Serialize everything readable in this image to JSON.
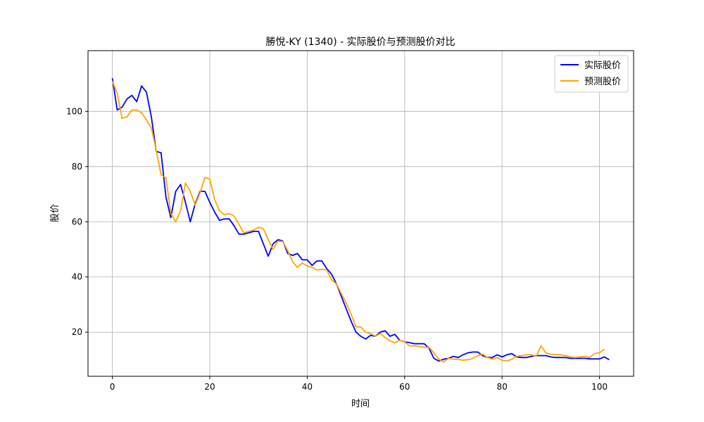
{
  "chart_data": {
    "type": "line",
    "title": "勝悅-KY (1340) - 实际股价与预测股价对比",
    "xlabel": "时间",
    "ylabel": "股价",
    "xlim": [
      -5,
      107
    ],
    "ylim": [
      4,
      122
    ],
    "xticks": [
      0,
      20,
      40,
      60,
      80,
      100
    ],
    "yticks": [
      20,
      40,
      60,
      80,
      100
    ],
    "grid": true,
    "legend_position": "top-right",
    "series": [
      {
        "name": "实际股价",
        "color": "#0000ff",
        "x": [
          0,
          1,
          2,
          3,
          4,
          5,
          6,
          7,
          8,
          9,
          10,
          11,
          12,
          13,
          14,
          15,
          16,
          17,
          18,
          19,
          20,
          21,
          22,
          23,
          24,
          25,
          26,
          27,
          28,
          29,
          30,
          31,
          32,
          33,
          34,
          35,
          36,
          37,
          38,
          39,
          40,
          41,
          42,
          43,
          44,
          45,
          46,
          47,
          48,
          49,
          50,
          51,
          52,
          53,
          54,
          55,
          56,
          57,
          58,
          59,
          60,
          61,
          62,
          63,
          64,
          65,
          66,
          67,
          68,
          69,
          70,
          71,
          72,
          73,
          74,
          75,
          76,
          77,
          78,
          79,
          80,
          81,
          82,
          83,
          84,
          85,
          86,
          87,
          88,
          89,
          90,
          91,
          92,
          93,
          94,
          95,
          96,
          97,
          98,
          99,
          100,
          101,
          102
        ],
        "y": [
          112.0,
          100.5,
          101.5,
          104.5,
          105.8,
          103.5,
          109.2,
          107.0,
          98.0,
          85.5,
          85.0,
          69.0,
          61.5,
          71.0,
          73.5,
          67.0,
          60.0,
          66.5,
          71.0,
          71.0,
          67.0,
          63.5,
          60.5,
          61.0,
          61.0,
          58.5,
          55.5,
          55.5,
          56.0,
          56.5,
          56.5,
          52.0,
          47.5,
          52.0,
          53.5,
          53.0,
          48.5,
          47.8,
          48.5,
          46.2,
          46.2,
          44.2,
          45.8,
          45.8,
          43.0,
          41.0,
          37.5,
          33.0,
          28.5,
          24.0,
          20.0,
          18.5,
          17.5,
          18.8,
          18.5,
          20.0,
          20.5,
          18.5,
          19.2,
          17.0,
          16.5,
          16.2,
          15.8,
          15.8,
          15.8,
          14.2,
          10.5,
          9.5,
          10.2,
          10.5,
          11.2,
          10.8,
          11.8,
          12.5,
          12.8,
          12.8,
          11.5,
          10.8,
          10.8,
          11.8,
          11.0,
          11.8,
          12.2,
          11.0,
          10.8,
          10.8,
          11.2,
          11.5,
          11.5,
          11.5,
          11.0,
          10.8,
          10.8,
          10.8,
          10.5,
          10.5,
          10.5,
          10.5,
          10.3,
          10.3,
          10.3,
          11.0,
          10.0
        ]
      },
      {
        "name": "预测股价",
        "color": "#ffa500",
        "x": [
          0,
          1,
          2,
          3,
          4,
          5,
          6,
          7,
          8,
          9,
          10,
          11,
          12,
          13,
          14,
          15,
          16,
          17,
          18,
          19,
          20,
          21,
          22,
          23,
          24,
          25,
          26,
          27,
          28,
          29,
          30,
          31,
          32,
          33,
          34,
          35,
          36,
          37,
          38,
          39,
          40,
          41,
          42,
          43,
          44,
          45,
          46,
          47,
          48,
          49,
          50,
          51,
          52,
          53,
          54,
          55,
          56,
          57,
          58,
          59,
          60,
          61,
          62,
          63,
          64,
          65,
          66,
          67,
          68,
          69,
          70,
          71,
          72,
          73,
          74,
          75,
          76,
          77,
          78,
          79,
          80,
          81,
          82,
          83,
          84,
          85,
          86,
          87,
          88,
          89,
          90,
          91,
          92,
          93,
          94,
          95,
          96,
          97,
          98,
          99,
          100,
          101
        ],
        "y": [
          111.0,
          106.5,
          97.5,
          98.0,
          100.5,
          100.5,
          99.5,
          97.0,
          94.0,
          86.0,
          77.0,
          76.0,
          63.0,
          60.0,
          64.0,
          74.0,
          71.0,
          66.0,
          70.5,
          76.0,
          75.5,
          68.0,
          64.0,
          62.5,
          63.0,
          62.0,
          59.0,
          56.0,
          56.5,
          57.0,
          58.0,
          57.5,
          53.5,
          50.0,
          53.0,
          52.8,
          49.5,
          45.5,
          43.5,
          45.0,
          44.0,
          43.5,
          42.5,
          42.8,
          42.5,
          39.0,
          37.5,
          34.0,
          30.5,
          26.5,
          22.0,
          21.8,
          20.0,
          19.5,
          18.5,
          19.5,
          18.0,
          16.8,
          16.2,
          17.0,
          16.5,
          15.0,
          15.0,
          14.8,
          14.5,
          14.5,
          12.5,
          10.2,
          9.2,
          10.5,
          10.2,
          10.2,
          9.8,
          10.0,
          10.5,
          11.5,
          12.0,
          10.8,
          10.2,
          10.8,
          9.8,
          9.5,
          10.2,
          11.2,
          11.5,
          11.8,
          11.8,
          11.2,
          15.0,
          12.5,
          12.0,
          11.8,
          11.8,
          11.5,
          11.0,
          10.8,
          11.0,
          11.2,
          10.8,
          12.2,
          12.5,
          13.8
        ]
      }
    ]
  }
}
